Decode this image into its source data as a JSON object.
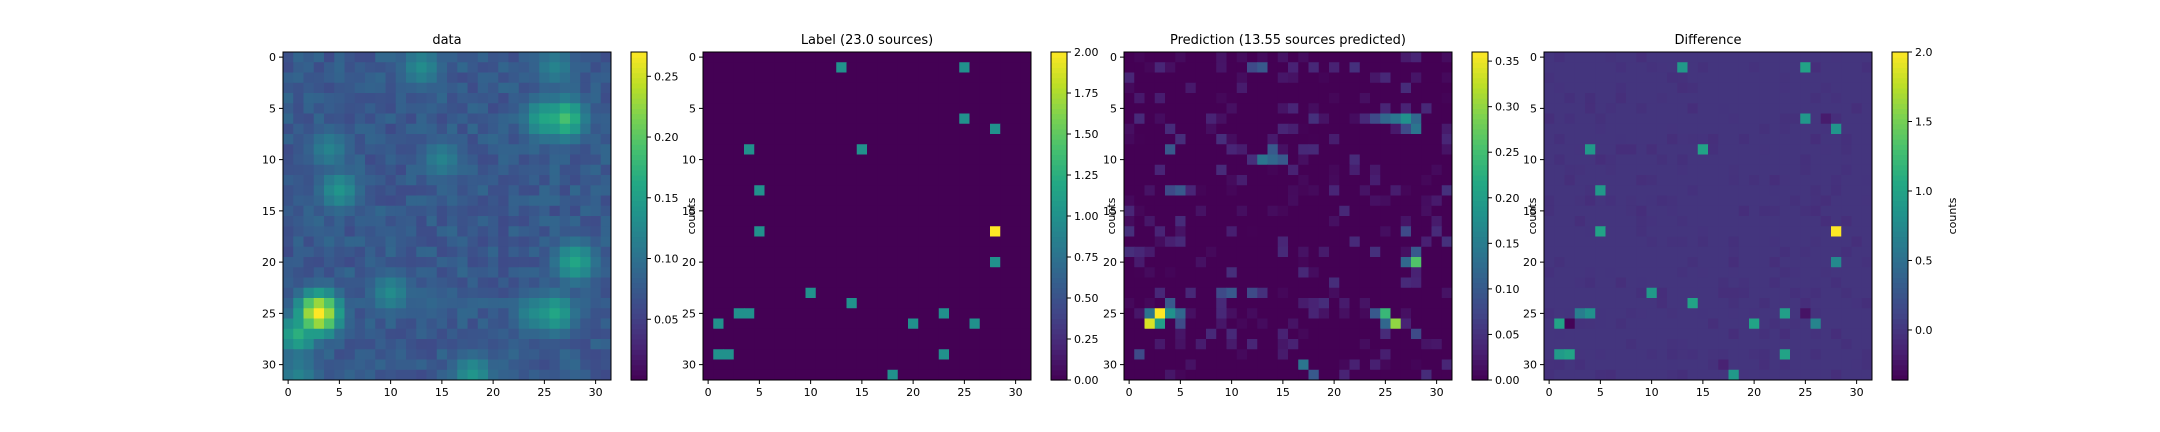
{
  "chart_data": [
    {
      "type": "heatmap",
      "title": "data",
      "grid_size": 32,
      "colormap": "viridis",
      "x_ticks": [
        "0",
        "5",
        "10",
        "15",
        "20",
        "25",
        "30"
      ],
      "y_ticks": [
        "0",
        "5",
        "10",
        "15",
        "20",
        "25",
        "30"
      ],
      "colorbar": {
        "label": "counts",
        "vmin": 0.0,
        "vmax": 0.27,
        "ticks": [
          0.05,
          0.1,
          0.15,
          0.2,
          0.25
        ],
        "tick_labels": [
          "0.05",
          "0.10",
          "0.15",
          "0.20",
          "0.25"
        ]
      },
      "background": 0.06,
      "blobs": [
        {
          "x": 13,
          "y": 1,
          "v": 0.13
        },
        {
          "x": 26,
          "y": 1,
          "v": 0.12
        },
        {
          "x": 27,
          "y": 6,
          "v": 0.19
        },
        {
          "x": 25,
          "y": 6,
          "v": 0.16
        },
        {
          "x": 4,
          "y": 9,
          "v": 0.12
        },
        {
          "x": 5,
          "y": 13,
          "v": 0.14
        },
        {
          "x": 15,
          "y": 10,
          "v": 0.12
        },
        {
          "x": 28,
          "y": 20,
          "v": 0.16
        },
        {
          "x": 10,
          "y": 23,
          "v": 0.13
        },
        {
          "x": 18,
          "y": 31,
          "v": 0.14
        },
        {
          "x": 3,
          "y": 25,
          "v": 0.27
        },
        {
          "x": 1,
          "y": 27,
          "v": 0.17
        },
        {
          "x": 26,
          "y": 25,
          "v": 0.16
        },
        {
          "x": 24,
          "y": 25,
          "v": 0.13
        },
        {
          "x": 1,
          "y": 31,
          "v": 0.12
        },
        {
          "x": 14,
          "y": 24,
          "v": 0.09
        },
        {
          "x": 22,
          "y": 29,
          "v": 0.08
        },
        {
          "x": 9,
          "y": 3,
          "v": 0.07
        }
      ]
    },
    {
      "type": "heatmap",
      "title": "Label (23.0 sources)",
      "grid_size": 32,
      "colormap": "viridis",
      "x_ticks": [
        "0",
        "5",
        "10",
        "15",
        "20",
        "25",
        "30"
      ],
      "y_ticks": [
        "0",
        "5",
        "10",
        "15",
        "20",
        "25",
        "30"
      ],
      "colorbar": {
        "label": "counts",
        "vmin": 0.0,
        "vmax": 2.0,
        "ticks": [
          0.0,
          0.25,
          0.5,
          0.75,
          1.0,
          1.25,
          1.5,
          1.75,
          2.0
        ],
        "tick_labels": [
          "0.00",
          "0.25",
          "0.50",
          "0.75",
          "1.00",
          "1.25",
          "1.50",
          "1.75",
          "2.00"
        ]
      },
      "background": 0.0,
      "cells": [
        {
          "x": 13,
          "y": 1,
          "v": 1
        },
        {
          "x": 25,
          "y": 1,
          "v": 1
        },
        {
          "x": 25,
          "y": 6,
          "v": 1
        },
        {
          "x": 28,
          "y": 7,
          "v": 1
        },
        {
          "x": 4,
          "y": 9,
          "v": 1
        },
        {
          "x": 15,
          "y": 9,
          "v": 1
        },
        {
          "x": 5,
          "y": 13,
          "v": 1
        },
        {
          "x": 5,
          "y": 17,
          "v": 1
        },
        {
          "x": 28,
          "y": 17,
          "v": 2
        },
        {
          "x": 28,
          "y": 20,
          "v": 1
        },
        {
          "x": 10,
          "y": 23,
          "v": 1
        },
        {
          "x": 14,
          "y": 24,
          "v": 1
        },
        {
          "x": 3,
          "y": 25,
          "v": 1
        },
        {
          "x": 4,
          "y": 25,
          "v": 1
        },
        {
          "x": 23,
          "y": 25,
          "v": 1
        },
        {
          "x": 1,
          "y": 26,
          "v": 1
        },
        {
          "x": 20,
          "y": 26,
          "v": 1
        },
        {
          "x": 26,
          "y": 26,
          "v": 1
        },
        {
          "x": 1,
          "y": 29,
          "v": 1
        },
        {
          "x": 2,
          "y": 29,
          "v": 1
        },
        {
          "x": 23,
          "y": 29,
          "v": 1
        },
        {
          "x": 18,
          "y": 31,
          "v": 1
        }
      ]
    },
    {
      "type": "heatmap",
      "title": "Prediction (13.55 sources predicted)",
      "grid_size": 32,
      "colormap": "viridis",
      "x_ticks": [
        "0",
        "5",
        "10",
        "15",
        "20",
        "25",
        "30"
      ],
      "y_ticks": [
        "0",
        "5",
        "10",
        "15",
        "20",
        "25",
        "30"
      ],
      "colorbar": {
        "label": "counts",
        "vmin": 0.0,
        "vmax": 0.36,
        "ticks": [
          0.0,
          0.05,
          0.1,
          0.15,
          0.2,
          0.25,
          0.3,
          0.35
        ],
        "tick_labels": [
          "0.00",
          "0.05",
          "0.10",
          "0.15",
          "0.20",
          "0.25",
          "0.30",
          "0.35"
        ]
      },
      "background": 0.0,
      "scatter_max": 0.05,
      "cells": [
        {
          "x": 3,
          "y": 25,
          "v": 0.36
        },
        {
          "x": 2,
          "y": 26,
          "v": 0.34
        },
        {
          "x": 3,
          "y": 26,
          "v": 0.2
        },
        {
          "x": 4,
          "y": 25,
          "v": 0.18
        },
        {
          "x": 2,
          "y": 25,
          "v": 0.14
        },
        {
          "x": 5,
          "y": 25,
          "v": 0.12
        },
        {
          "x": 4,
          "y": 24,
          "v": 0.1
        },
        {
          "x": 5,
          "y": 26,
          "v": 0.08
        },
        {
          "x": 25,
          "y": 25,
          "v": 0.24
        },
        {
          "x": 26,
          "y": 26,
          "v": 0.3
        },
        {
          "x": 25,
          "y": 26,
          "v": 0.12
        },
        {
          "x": 24,
          "y": 25,
          "v": 0.1
        },
        {
          "x": 27,
          "y": 6,
          "v": 0.18
        },
        {
          "x": 26,
          "y": 6,
          "v": 0.14
        },
        {
          "x": 25,
          "y": 6,
          "v": 0.12
        },
        {
          "x": 28,
          "y": 6,
          "v": 0.12
        },
        {
          "x": 28,
          "y": 7,
          "v": 0.14
        },
        {
          "x": 27,
          "y": 7,
          "v": 0.08
        },
        {
          "x": 24,
          "y": 6,
          "v": 0.08
        },
        {
          "x": 28,
          "y": 20,
          "v": 0.26
        },
        {
          "x": 27,
          "y": 20,
          "v": 0.12
        },
        {
          "x": 28,
          "y": 19,
          "v": 0.1
        },
        {
          "x": 27,
          "y": 17,
          "v": 0.08
        },
        {
          "x": 13,
          "y": 10,
          "v": 0.14
        },
        {
          "x": 14,
          "y": 10,
          "v": 0.12
        },
        {
          "x": 15,
          "y": 10,
          "v": 0.1
        },
        {
          "x": 14,
          "y": 9,
          "v": 0.1
        },
        {
          "x": 13,
          "y": 1,
          "v": 0.1
        },
        {
          "x": 12,
          "y": 1,
          "v": 0.08
        },
        {
          "x": 5,
          "y": 13,
          "v": 0.1
        },
        {
          "x": 4,
          "y": 13,
          "v": 0.08
        },
        {
          "x": 4,
          "y": 9,
          "v": 0.1
        },
        {
          "x": 17,
          "y": 30,
          "v": 0.14
        },
        {
          "x": 18,
          "y": 31,
          "v": 0.1
        },
        {
          "x": 10,
          "y": 23,
          "v": 0.1
        },
        {
          "x": 9,
          "y": 23,
          "v": 0.08
        },
        {
          "x": 12,
          "y": 23,
          "v": 0.08
        },
        {
          "x": 1,
          "y": 29,
          "v": 0.08
        },
        {
          "x": 28,
          "y": 27,
          "v": 0.08
        }
      ]
    },
    {
      "type": "heatmap",
      "title": "Difference",
      "grid_size": 32,
      "colormap": "viridis",
      "x_ticks": [
        "0",
        "5",
        "10",
        "15",
        "20",
        "25",
        "30"
      ],
      "y_ticks": [
        "0",
        "5",
        "10",
        "15",
        "20",
        "25",
        "30"
      ],
      "colorbar": {
        "label": "counts",
        "vmin": -0.36,
        "vmax": 2.0,
        "ticks": [
          0.0,
          0.5,
          1.0,
          1.5,
          2.0
        ],
        "tick_labels": [
          "0.0",
          "0.5",
          "1.0",
          "1.5",
          "2.0"
        ]
      },
      "background": 0.0,
      "scatter_max": -0.05,
      "cells": [
        {
          "x": 13,
          "y": 1,
          "v": 0.9
        },
        {
          "x": 25,
          "y": 1,
          "v": 1.0
        },
        {
          "x": 25,
          "y": 6,
          "v": 0.88
        },
        {
          "x": 28,
          "y": 7,
          "v": 0.86
        },
        {
          "x": 4,
          "y": 9,
          "v": 0.9
        },
        {
          "x": 15,
          "y": 9,
          "v": 1.0
        },
        {
          "x": 5,
          "y": 13,
          "v": 0.9
        },
        {
          "x": 5,
          "y": 17,
          "v": 1.0
        },
        {
          "x": 28,
          "y": 17,
          "v": 2.0
        },
        {
          "x": 28,
          "y": 20,
          "v": 0.74
        },
        {
          "x": 10,
          "y": 23,
          "v": 0.9
        },
        {
          "x": 14,
          "y": 24,
          "v": 1.0
        },
        {
          "x": 3,
          "y": 25,
          "v": 0.64
        },
        {
          "x": 4,
          "y": 25,
          "v": 0.82
        },
        {
          "x": 23,
          "y": 25,
          "v": 0.95
        },
        {
          "x": 1,
          "y": 26,
          "v": 1.0
        },
        {
          "x": 20,
          "y": 26,
          "v": 1.0
        },
        {
          "x": 26,
          "y": 26,
          "v": 0.7
        },
        {
          "x": 1,
          "y": 29,
          "v": 0.92
        },
        {
          "x": 2,
          "y": 29,
          "v": 1.0
        },
        {
          "x": 23,
          "y": 29,
          "v": 1.0
        },
        {
          "x": 18,
          "y": 31,
          "v": 0.9
        },
        {
          "x": 2,
          "y": 26,
          "v": -0.34
        },
        {
          "x": 27,
          "y": 6,
          "v": -0.18
        },
        {
          "x": 25,
          "y": 25,
          "v": -0.24
        },
        {
          "x": 17,
          "y": 30,
          "v": -0.14
        }
      ]
    }
  ]
}
